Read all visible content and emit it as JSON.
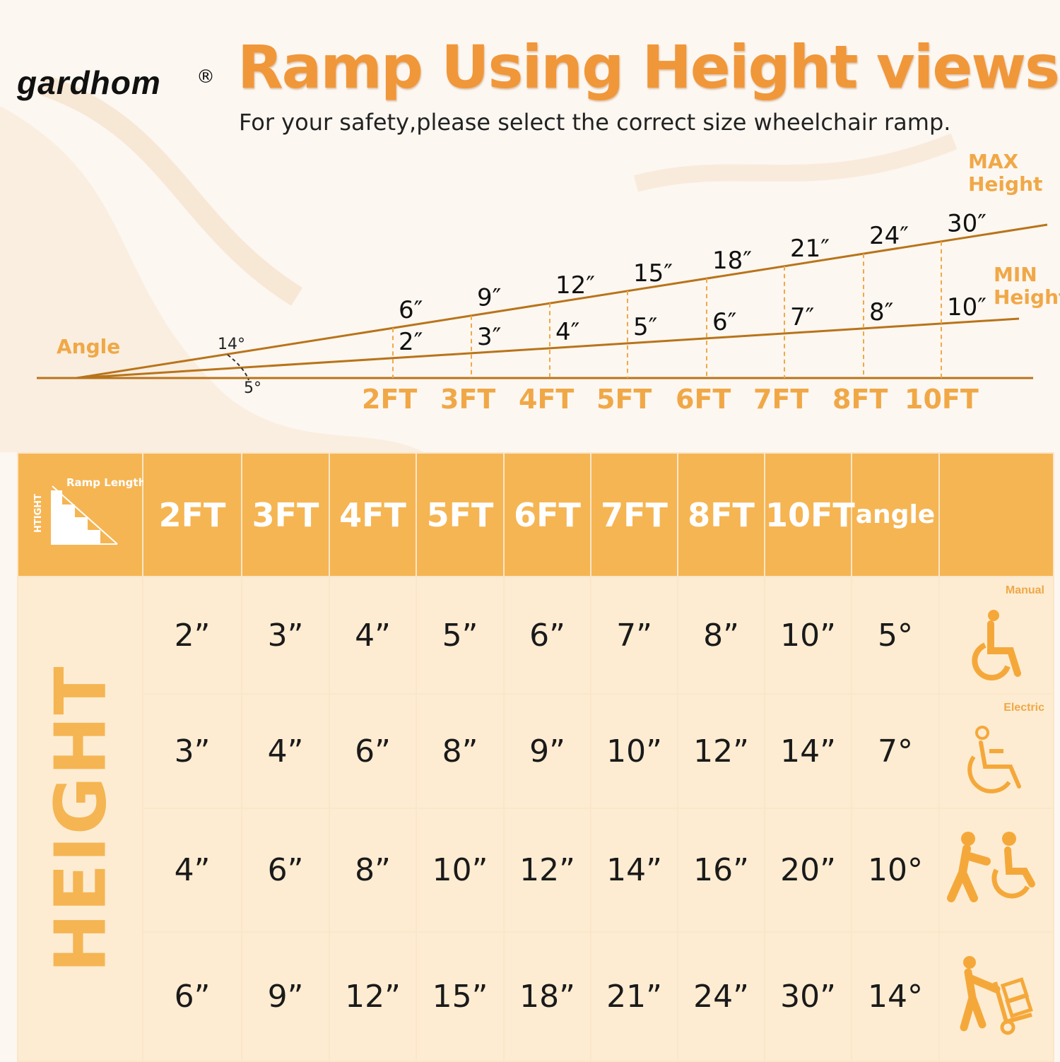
{
  "brand": {
    "name": "gardhom",
    "reg": "®"
  },
  "title": "Ramp Using Height views",
  "subtitle": "For your safety,please select the correct size wheelchair ramp.",
  "diagram": {
    "angle_label": "Angle",
    "max_label_1": "MAX",
    "max_label_2": "Height",
    "min_label_1": "MIN",
    "min_label_2": "Height",
    "max_angle": "14°",
    "min_angle": "5°",
    "lengths": [
      "2FT",
      "3FT",
      "4FT",
      "5FT",
      "6FT",
      "7FT",
      "8FT",
      "10FT"
    ],
    "max_heights": [
      "6″",
      "9″",
      "12″",
      "15″",
      "18″",
      "21″",
      "24″",
      "30″"
    ],
    "min_heights": [
      "2″",
      "3″",
      "4″",
      "5″",
      "6″",
      "7″",
      "8″",
      "10″"
    ],
    "line_color": "#b8741a",
    "label_color": "#f0a847"
  },
  "table": {
    "corner_label_top": "Ramp Length",
    "corner_label_side": "HTIGHT",
    "headers": [
      "2FT",
      "3FT",
      "4FT",
      "5FT",
      "6FT",
      "7FT",
      "8FT",
      "10FT",
      "angle"
    ],
    "side_label": "HEIGHT",
    "rows": [
      {
        "values": [
          "2”",
          "3”",
          "4”",
          "5”",
          "6”",
          "7”",
          "8”",
          "10”",
          "5°"
        ],
        "icon": "manual-wheelchair-icon",
        "icon_label": "Manual"
      },
      {
        "values": [
          "3”",
          "4”",
          "6”",
          "8”",
          "9”",
          "10”",
          "12”",
          "14”",
          "7°"
        ],
        "icon": "electric-wheelchair-icon",
        "icon_label": "Electric"
      },
      {
        "values": [
          "4”",
          "6”",
          "8”",
          "10”",
          "12”",
          "14”",
          "16”",
          "20”",
          "10°"
        ],
        "icon": "assisted-wheelchair-icon",
        "icon_label": ""
      },
      {
        "values": [
          "6”",
          "9”",
          "12”",
          "15”",
          "18”",
          "21”",
          "24”",
          "30”",
          "14°"
        ],
        "icon": "hand-truck-icon",
        "icon_label": ""
      }
    ],
    "header_color": "#f5b553",
    "body_color": "#fdecd2"
  }
}
